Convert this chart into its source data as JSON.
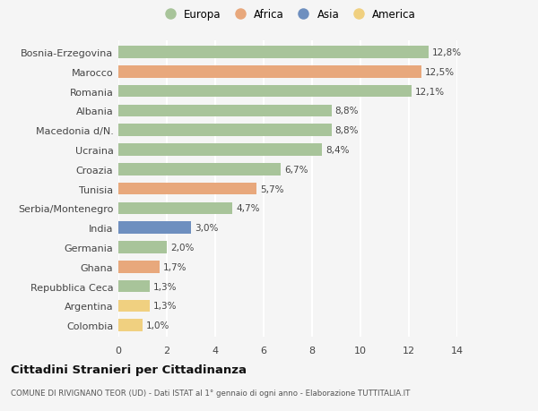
{
  "categories": [
    "Bosnia-Erzegovina",
    "Marocco",
    "Romania",
    "Albania",
    "Macedonia d/N.",
    "Ucraina",
    "Croazia",
    "Tunisia",
    "Serbia/Montenegro",
    "India",
    "Germania",
    "Ghana",
    "Repubblica Ceca",
    "Argentina",
    "Colombia"
  ],
  "values": [
    12.8,
    12.5,
    12.1,
    8.8,
    8.8,
    8.4,
    6.7,
    5.7,
    4.7,
    3.0,
    2.0,
    1.7,
    1.3,
    1.3,
    1.0
  ],
  "labels": [
    "12,8%",
    "12,5%",
    "12,1%",
    "8,8%",
    "8,8%",
    "8,4%",
    "6,7%",
    "5,7%",
    "4,7%",
    "3,0%",
    "2,0%",
    "1,7%",
    "1,3%",
    "1,3%",
    "1,0%"
  ],
  "continents": [
    "Europa",
    "Africa",
    "Europa",
    "Europa",
    "Europa",
    "Europa",
    "Europa",
    "Africa",
    "Europa",
    "Asia",
    "Europa",
    "Africa",
    "Europa",
    "America",
    "America"
  ],
  "colors": {
    "Europa": "#a8c49a",
    "Africa": "#e8a87c",
    "Asia": "#6e8fbf",
    "America": "#f0d080"
  },
  "legend_order": [
    "Europa",
    "Africa",
    "Asia",
    "America"
  ],
  "title": "Cittadini Stranieri per Cittadinanza",
  "subtitle": "COMUNE DI RIVIGNANO TEOR (UD) - Dati ISTAT al 1° gennaio di ogni anno - Elaborazione TUTTITALIA.IT",
  "xlim": [
    0,
    14
  ],
  "xticks": [
    0,
    2,
    4,
    6,
    8,
    10,
    12,
    14
  ],
  "background_color": "#f5f5f5",
  "grid_color": "#ffffff"
}
